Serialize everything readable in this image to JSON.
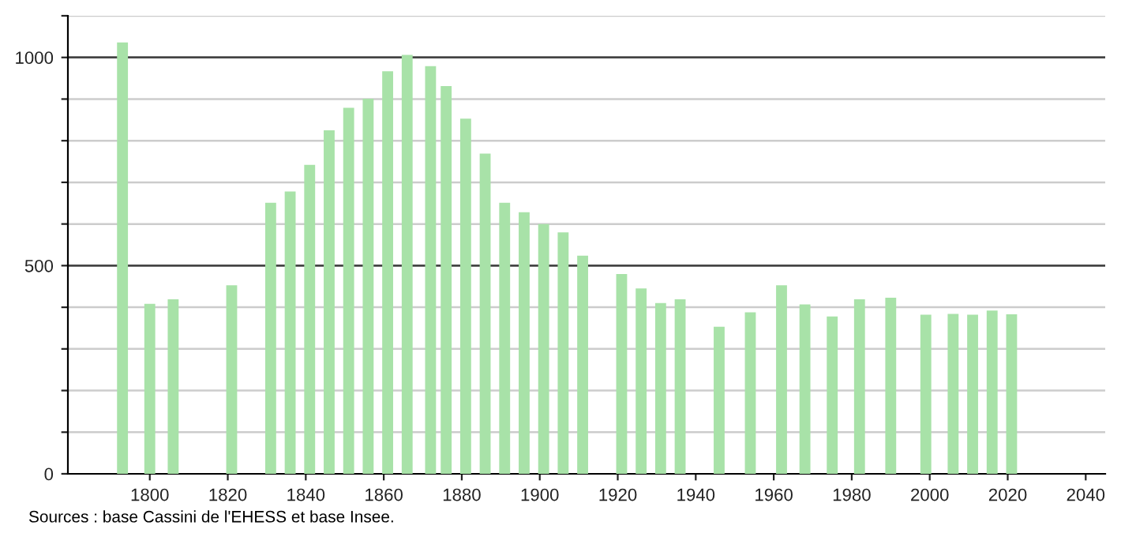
{
  "chart_data": {
    "type": "bar",
    "x": [
      1793,
      1800,
      1806,
      1821,
      1831,
      1836,
      1841,
      1846,
      1851,
      1856,
      1861,
      1866,
      1872,
      1876,
      1881,
      1886,
      1891,
      1896,
      1901,
      1906,
      1911,
      1921,
      1926,
      1931,
      1936,
      1946,
      1954,
      1962,
      1968,
      1975,
      1982,
      1990,
      1999,
      2006,
      2011,
      2016,
      2021
    ],
    "values": [
      1036,
      408,
      419,
      453,
      651,
      678,
      742,
      825,
      879,
      901,
      967,
      1006,
      979,
      931,
      853,
      769,
      651,
      628,
      600,
      580,
      524,
      480,
      445,
      410,
      419,
      353,
      388,
      453,
      407,
      378,
      419,
      423,
      382,
      384,
      382,
      392,
      383
    ],
    "color": "#a8e2a8",
    "xlim": [
      1779,
      2045
    ],
    "xticks": [
      1800,
      1820,
      1840,
      1860,
      1880,
      1900,
      1920,
      1940,
      1960,
      1980,
      2000,
      2020,
      2040
    ],
    "ylim": [
      0,
      1100
    ],
    "yticks": [
      0,
      {
        "value": 100,
        "label": null
      },
      {
        "value": 200,
        "label": null
      },
      {
        "value": 300,
        "label": null
      },
      {
        "value": 400,
        "label": null
      },
      500,
      {
        "value": 600,
        "label": null
      },
      {
        "value": 700,
        "label": null
      },
      {
        "value": 800,
        "label": null
      },
      {
        "value": 900,
        "label": null
      },
      1000,
      {
        "value": 1100,
        "label": null
      }
    ],
    "grid": "y",
    "annotations": [
      "Sources : base Cassini de l'EHESS et base Insee."
    ]
  }
}
